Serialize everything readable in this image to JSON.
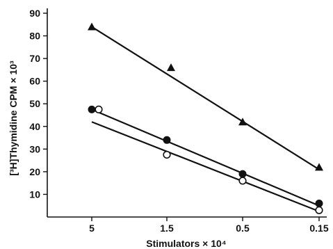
{
  "chart_data": {
    "type": "scatter",
    "xlabel": "Stimulators × 10⁴",
    "ylabel": "[³H]Thymidine CPM × 10³",
    "x_categories": [
      "5",
      "1.5",
      "0.5",
      "0.15"
    ],
    "y_ticks": [
      "10",
      "20",
      "30",
      "40",
      "50",
      "60",
      "70",
      "80",
      "90"
    ],
    "ylim": [
      0,
      90
    ],
    "grid": false,
    "series": [
      {
        "marker": "filled-triangle",
        "points": [
          {
            "x": "5",
            "y": 84
          },
          {
            "x": "1.5",
            "y": 66
          },
          {
            "x": "0.5",
            "y": 42
          },
          {
            "x": "0.15",
            "y": 22
          }
        ],
        "fit": {
          "from": {
            "x": "5",
            "y": 84
          },
          "to": {
            "x": "0.15",
            "y": 21
          }
        }
      },
      {
        "marker": "filled-circle",
        "points": [
          {
            "x": "5",
            "y": 47.5
          },
          {
            "x": "1.5",
            "y": 34
          },
          {
            "x": "0.5",
            "y": 19
          },
          {
            "x": "0.15",
            "y": 6
          }
        ],
        "fit": {
          "from": {
            "x": "5",
            "y": 47.5
          },
          "to": {
            "x": "0.15",
            "y": 5
          }
        }
      },
      {
        "marker": "open-circle",
        "points": [
          {
            "x": "5",
            "y": 47.5
          },
          {
            "x": "1.5",
            "y": 27.5
          },
          {
            "x": "0.5",
            "y": 16
          },
          {
            "x": "0.15",
            "y": 3
          }
        ],
        "fit": {
          "from": {
            "x": "5",
            "y": 42
          },
          "to": {
            "x": "0.15",
            "y": 2.5
          }
        }
      }
    ]
  }
}
